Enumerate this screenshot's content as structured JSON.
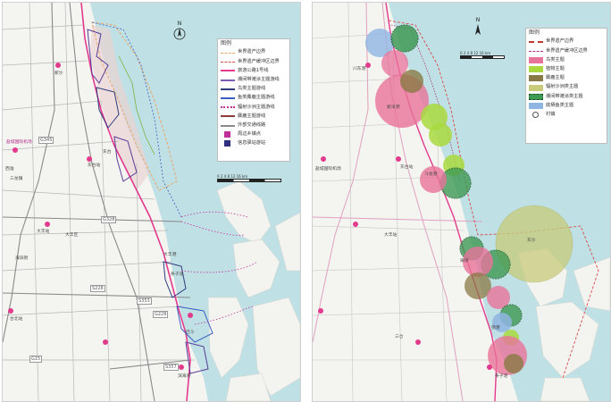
{
  "left_map": {
    "legend": {
      "title": "图例",
      "items": [
        {
          "label": "世界遗产边界",
          "style": "dash-orange"
        },
        {
          "label": "世界遗产缓冲区边界",
          "style": "dash-red"
        },
        {
          "label": "旅游公路1号线",
          "style": "line-magenta"
        },
        {
          "label": "潮间带滩涂主题游线",
          "style": "line-purple"
        },
        {
          "label": "鸟类主题游线",
          "style": "line-navy"
        },
        {
          "label": "鱼类麋鹿主题游线",
          "style": "line-blue"
        },
        {
          "label": "辐射沙洲主题游线",
          "style": "dots-magenta"
        },
        {
          "label": "麋鹿主题游线",
          "style": "line-darkred"
        },
        {
          "label": "外部交通线路",
          "style": "line-grey"
        },
        {
          "label": "周边乡镇点",
          "style": "square-magenta"
        },
        {
          "label": "信息驿站游站",
          "style": "square-navy"
        }
      ]
    },
    "north_label": "N",
    "scale_label": "0  2  4    8       12       16 km",
    "roads": [
      "G345",
      "G328",
      "S228",
      "S357",
      "G15",
      "G228",
      "S353"
    ],
    "places": [
      "盐城国际机场",
      "东台站",
      "大丰站",
      "台北站",
      "大丰区",
      "滨海港",
      "三龙镇",
      "新沙",
      "东台",
      "巴斗",
      "海滨街",
      "西淮",
      "条子泥",
      "大丰港"
    ],
    "colors": {
      "sea": "#bfe0e4",
      "land": "#f3f3ef",
      "tourism_road": "#e23a8c",
      "buffer": "#d94b4b",
      "heritage": "#e8a66a"
    }
  },
  "right_map": {
    "legend": {
      "title": "图例",
      "items": [
        {
          "label": "世界遗产边界",
          "style": "dash-orange"
        },
        {
          "label": "世界遗产缓冲区边界",
          "style": "dash-red"
        },
        {
          "label": "鸟类主题",
          "style": "fill-pink"
        },
        {
          "label": "植物主题",
          "style": "fill-green"
        },
        {
          "label": "麋鹿主题",
          "style": "fill-brown"
        },
        {
          "label": "辐射沙洲类主题",
          "style": "fill-olive"
        },
        {
          "label": "潮间带滩涂类主题",
          "style": "fill-darkgreen"
        },
        {
          "label": "底栖鱼类主题",
          "style": "fill-blue"
        },
        {
          "label": "村镇",
          "style": "circle-outline"
        }
      ]
    },
    "north_label": "N",
    "scale_label": "0  2  4    8  12  16 km",
    "places": [
      "东沙",
      "大丰站",
      "东台站",
      "盐城国际机场",
      "川东港",
      "新洋港",
      "斗龙港",
      "梁垛",
      "弶港",
      "三仓",
      "条子泥"
    ],
    "colors": {
      "bird": "#e8739a",
      "plant": "#a9d93f",
      "elk": "#8a7a45",
      "sandbar": "#c8cc7a",
      "intertidal": "#3f9a55",
      "benthic": "#8fb5e2"
    }
  }
}
